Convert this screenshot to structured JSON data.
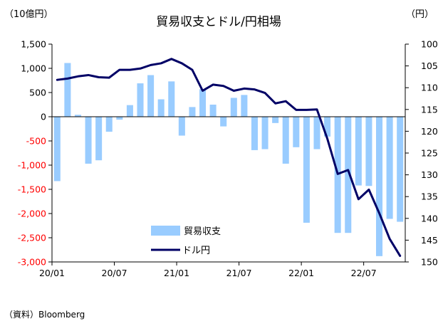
{
  "chart_data": {
    "type": "bar+line",
    "title": "貿易収支とドル/円相場",
    "left_unit": "（10億円）",
    "right_unit": "（円）",
    "source": "（資料）Bloomberg",
    "x_tick_labels": [
      "20/01",
      "20/07",
      "21/01",
      "21/07",
      "22/01",
      "22/07"
    ],
    "x_tick_months": [
      "2020-01",
      "2020-07",
      "2021-01",
      "2021-07",
      "2022-01",
      "2022-07"
    ],
    "left_axis": {
      "ylim": [
        -3000,
        1500
      ],
      "ticks": [
        1500,
        1000,
        500,
        0,
        -500,
        -1000,
        -1500,
        -2000,
        -2500,
        -3000
      ],
      "tick_labels": [
        "1,500",
        "1,000",
        "500",
        "0",
        "-500",
        "-1,000",
        "-1,500",
        "-2,000",
        "-2,500",
        "-3,000"
      ],
      "negative_label_color": "#ff0000"
    },
    "right_axis": {
      "ylim": [
        150,
        100
      ],
      "inverted": true,
      "ticks": [
        100,
        105,
        110,
        115,
        120,
        125,
        130,
        135,
        140,
        145,
        150
      ],
      "tick_labels": [
        "100",
        "105",
        "110",
        "115",
        "120",
        "125",
        "130",
        "135",
        "140",
        "145",
        "150"
      ]
    },
    "months": [
      "2020-01",
      "2020-02",
      "2020-03",
      "2020-04",
      "2020-05",
      "2020-06",
      "2020-07",
      "2020-08",
      "2020-09",
      "2020-10",
      "2020-11",
      "2020-12",
      "2021-01",
      "2021-02",
      "2021-03",
      "2021-04",
      "2021-05",
      "2021-06",
      "2021-07",
      "2021-08",
      "2021-09",
      "2021-10",
      "2021-11",
      "2021-12",
      "2022-01",
      "2022-02",
      "2022-03",
      "2022-04",
      "2022-05",
      "2022-06",
      "2022-07",
      "2022-08",
      "2022-09",
      "2022-10"
    ],
    "series": [
      {
        "name": "貿易収支",
        "type": "bar",
        "axis": "left",
        "color": "#99ccff",
        "values": [
          -1330,
          1110,
          40,
          -970,
          -900,
          -310,
          -60,
          240,
          690,
          860,
          360,
          730,
          -390,
          200,
          570,
          250,
          -200,
          390,
          450,
          -690,
          -670,
          -130,
          -970,
          -630,
          -2190,
          -670,
          -410,
          -2400,
          -2400,
          -1420,
          -1430,
          -2880,
          -2110,
          -2170
        ]
      },
      {
        "name": "ドル円",
        "type": "line",
        "axis": "right",
        "color": "#000066",
        "values": [
          108.2,
          107.9,
          107.4,
          107.1,
          107.6,
          107.7,
          105.9,
          105.9,
          105.6,
          104.8,
          104.4,
          103.4,
          104.4,
          105.9,
          110.7,
          109.3,
          109.6,
          110.7,
          110.2,
          110.4,
          111.2,
          113.6,
          113.1,
          115.1,
          115.1,
          115.0,
          121.7,
          129.8,
          128.9,
          135.6,
          133.4,
          138.8,
          144.7,
          148.6
        ]
      }
    ],
    "legend": {
      "placement": "center-lower"
    }
  }
}
